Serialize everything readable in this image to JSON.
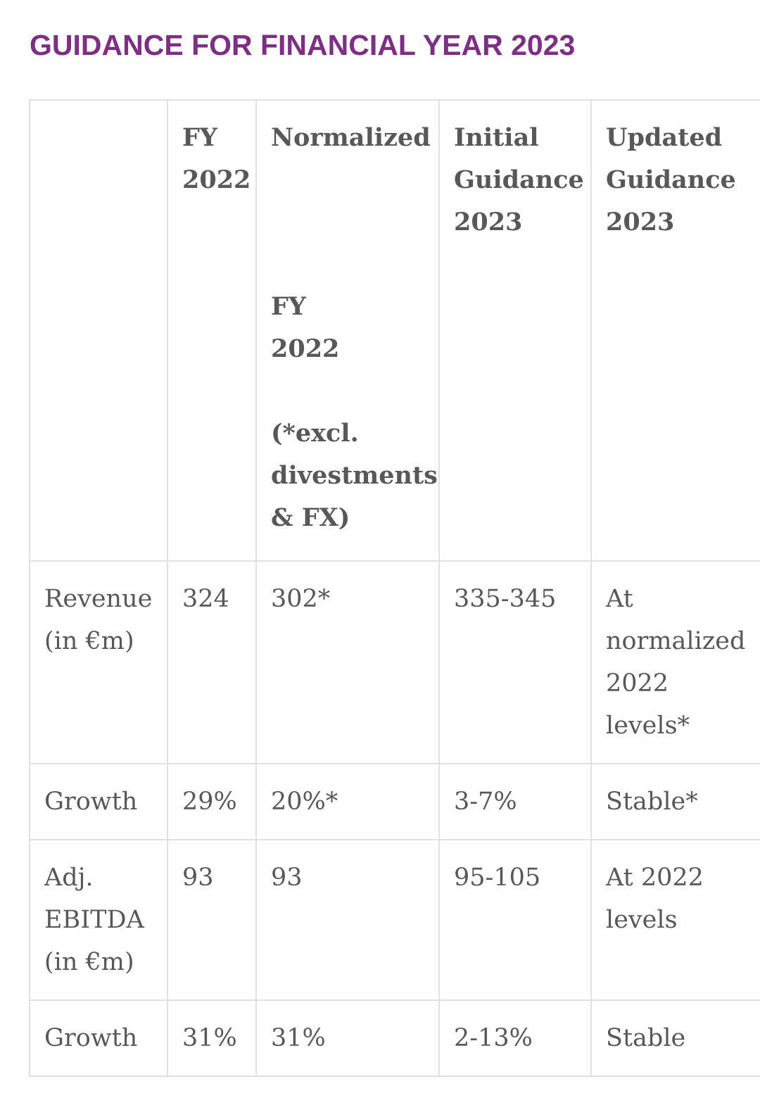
{
  "page_title": "GUIDANCE FOR FINANCIAL YEAR 2023",
  "theme": {
    "accent_purple": "#7d3083",
    "text_gray": "#585858",
    "border_gray": "#e1e1e1",
    "background": "#ffffff"
  },
  "table": {
    "header": {
      "col0": "",
      "col1": "FY\n2022",
      "col2": "Normalized\n\n\n\nFY\n2022\n\n(*excl.\ndivestments\n& FX)",
      "col3": "Initial\nGuidance\n2023",
      "col4": "Updated\nGuidance\n2023"
    },
    "rows": [
      {
        "label": "Revenue\n(in €m)",
        "bold": true,
        "fy2022": "324",
        "normalized_fy2022": "302*",
        "initial_guidance": "335-345",
        "updated_guidance": "At\nnormalized\n2022\nlevels*"
      },
      {
        "label": "Growth",
        "bold": false,
        "fy2022": "29%",
        "normalized_fy2022": "20%*",
        "initial_guidance": "3-7%",
        "updated_guidance": "Stable*"
      },
      {
        "label": "Adj.\nEBITDA\n(in €m)",
        "bold": true,
        "fy2022": "93",
        "normalized_fy2022": "93",
        "initial_guidance": "95-105",
        "updated_guidance": "At 2022\nlevels"
      },
      {
        "label": "Growth",
        "bold": false,
        "fy2022": "31%",
        "normalized_fy2022": "31%",
        "initial_guidance": "2-13%",
        "updated_guidance": "Stable"
      }
    ]
  }
}
